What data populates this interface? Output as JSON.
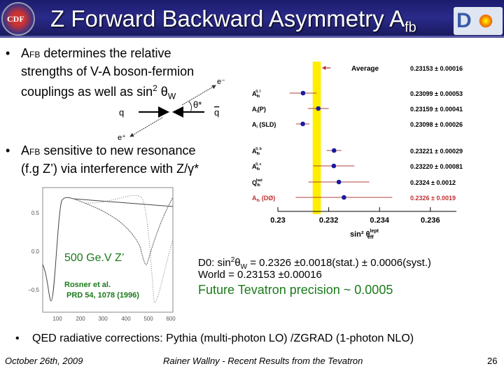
{
  "header": {
    "title": "Z Forward Backward Asymmetry A",
    "title_sub": "fb",
    "cdf_logo": "CDF II",
    "d0_logo": "DØ"
  },
  "bullets": [
    {
      "pre": "A",
      "sub": "FB",
      "l1": " determines  the relative",
      "l2": "strengths of V-A boson-fermion",
      "l3a": "couplings as well as sin",
      "l3sup": "2",
      "l3b": " θ",
      "l3sub": "W"
    },
    {
      "pre": "A",
      "sub": "FB",
      "l1": " sensitive to new resonance",
      "l2": "(f.g Z’) via interference with Z/γ*"
    },
    {
      "text": "QED radiative corrections: Pythia (multi-photon LO) /ZGRAD (1-photon NLO)"
    }
  ],
  "diagram": {
    "q": "q",
    "qbar": "q",
    "eminus": "e⁻",
    "eplus": "e⁺",
    "theta": "θ*"
  },
  "zprime_plot": {
    "yticks": [
      "0.5",
      "0.0",
      "−0.5"
    ],
    "xticks": [
      "100",
      "200",
      "300",
      "400",
      "500",
      "600"
    ],
    "label": "500 Ge.V Z’",
    "ref1": "Rosner et al.",
    "ref2": "PRD 54, 1078 (1996)"
  },
  "forest": {
    "xlabel": "sin² θ",
    "xlabel_sup": "lept",
    "xlabel_sub": "eff",
    "xticks": [
      "0.23",
      "0.232",
      "0.234",
      "0.236"
    ],
    "average": {
      "label": "Average",
      "value": 0.23153,
      "error": 0.00016,
      "text": "0.23153 ± 0.00016"
    },
    "rows": [
      {
        "label": "A",
        "sup": "0, l",
        "sub": "fb",
        "value": 0.23099,
        "error": 0.00053,
        "text": "0.23099 ± 0.00053",
        "red": false
      },
      {
        "label": "A",
        "sup": "",
        "sub": "l",
        "suffix": "(P",
        "suffix2": ")",
        "value": 0.23159,
        "error": 0.00041,
        "text": "0.23159 ± 0.00041",
        "red": false
      },
      {
        "label": "A",
        "sup": "",
        "sub": "l",
        "suffix": " (SLD)",
        "value": 0.23098,
        "error": 0.00026,
        "text": "0.23098 ± 0.00026",
        "red": false
      },
      {
        "label": "A",
        "sup": "0, b",
        "sub": "fb",
        "value": 0.23221,
        "error": 0.00029,
        "text": "0.23221 ± 0.00029",
        "red": false
      },
      {
        "label": "A",
        "sup": "0, c",
        "sub": "fb",
        "value": 0.2322,
        "error": 0.00081,
        "text": "0.23220 ± 0.00081",
        "red": false
      },
      {
        "label": "Q",
        "sup": "had",
        "sub": "fb",
        "value": 0.2324,
        "error": 0.0012,
        "text": "0.2324 ± 0.0012",
        "red": false
      },
      {
        "label": "A",
        "sup": "",
        "sub": "fb",
        "suffix": " (DØ)",
        "value": 0.2326,
        "error": 0.0019,
        "text": "0.2326 ± 0.0019",
        "red": true
      }
    ]
  },
  "results": {
    "d0_a": "D0: sin",
    "d0_sup": "2",
    "d0_b": "θ",
    "d0_sub": "W",
    "d0_c": " = 0.2326   ±0.0018(stat.) ± 0.0006(syst.)",
    "world": "World      = 0.23153 ±0.00016",
    "future": "Future Tevatron precision ~ 0.0005"
  },
  "footer": {
    "date": "October 26th, 2009",
    "author": "Rainer Wallny - Recent Results from the Tevatron",
    "page": "26"
  }
}
